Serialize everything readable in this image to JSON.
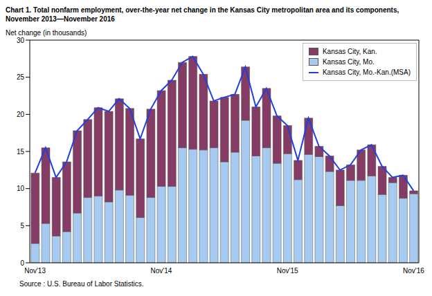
{
  "chart_data": {
    "type": "bar",
    "title": "Chart 1. Total nonfarm employment, over-the-year net change in the Kansas City metropolitan area and its components, November 2013—November 2016",
    "y_label": "Net change (in thousands)",
    "source": "Source : U.S. Bureau of Labor Statistics.",
    "categories": [
      "Nov'13",
      null,
      null,
      null,
      null,
      null,
      null,
      null,
      null,
      null,
      null,
      null,
      "Nov'14",
      null,
      null,
      null,
      null,
      null,
      null,
      null,
      null,
      null,
      null,
      null,
      "Nov'15",
      null,
      null,
      null,
      null,
      null,
      null,
      null,
      null,
      null,
      null,
      null,
      "Nov'16"
    ],
    "series": [
      {
        "name": "Kansas City, Kan.",
        "type": "bar",
        "color": "#843c64",
        "values": [
          9.5,
          10.2,
          7.9,
          9.4,
          11.1,
          10.5,
          11.9,
          12.2,
          12.3,
          11.7,
          10.6,
          11.9,
          12.9,
          14.3,
          11.5,
          12.5,
          10.2,
          6.3,
          8.7,
          7.8,
          7.2,
          6.6,
          8.0,
          6.4,
          3.8,
          2.6,
          4.9,
          1.4,
          2.1,
          4.8,
          2.1,
          4.1,
          4.2,
          3.8,
          0.7,
          3.1,
          0.4
        ]
      },
      {
        "name": "Kansas City, Mo.",
        "type": "bar",
        "color": "#a6caf0",
        "values": [
          2.6,
          5.3,
          3.6,
          4.2,
          6.7,
          8.8,
          9.0,
          8.2,
          9.8,
          9.1,
          6.1,
          8.8,
          10.3,
          10.3,
          15.5,
          15.3,
          15.2,
          15.5,
          13.6,
          14.9,
          19.2,
          14.4,
          15.5,
          13.4,
          14.7,
          11.2,
          14.6,
          14.3,
          12.3,
          7.7,
          11.1,
          11.1,
          11.7,
          9.2,
          10.8,
          8.7,
          9.3
        ]
      },
      {
        "name": "Kansas City, Mo.-Kan.(MSA)",
        "type": "line",
        "color": "#1f3fe0",
        "values": [
          12.1,
          15.5,
          11.5,
          13.6,
          17.8,
          19.3,
          20.9,
          20.4,
          22.1,
          20.8,
          16.7,
          20.7,
          23.2,
          24.6,
          27.0,
          27.8,
          25.4,
          21.8,
          22.3,
          22.7,
          26.4,
          21.0,
          23.5,
          19.8,
          18.5,
          13.8,
          19.5,
          15.7,
          14.4,
          12.5,
          13.2,
          15.2,
          15.9,
          13.0,
          11.5,
          11.8,
          9.7
        ]
      }
    ],
    "stacked": true,
    "ylim": [
      0,
      30
    ],
    "yticks": [
      0,
      5,
      10,
      15,
      20,
      25,
      30
    ],
    "grid": false,
    "legend": "top-right"
  }
}
